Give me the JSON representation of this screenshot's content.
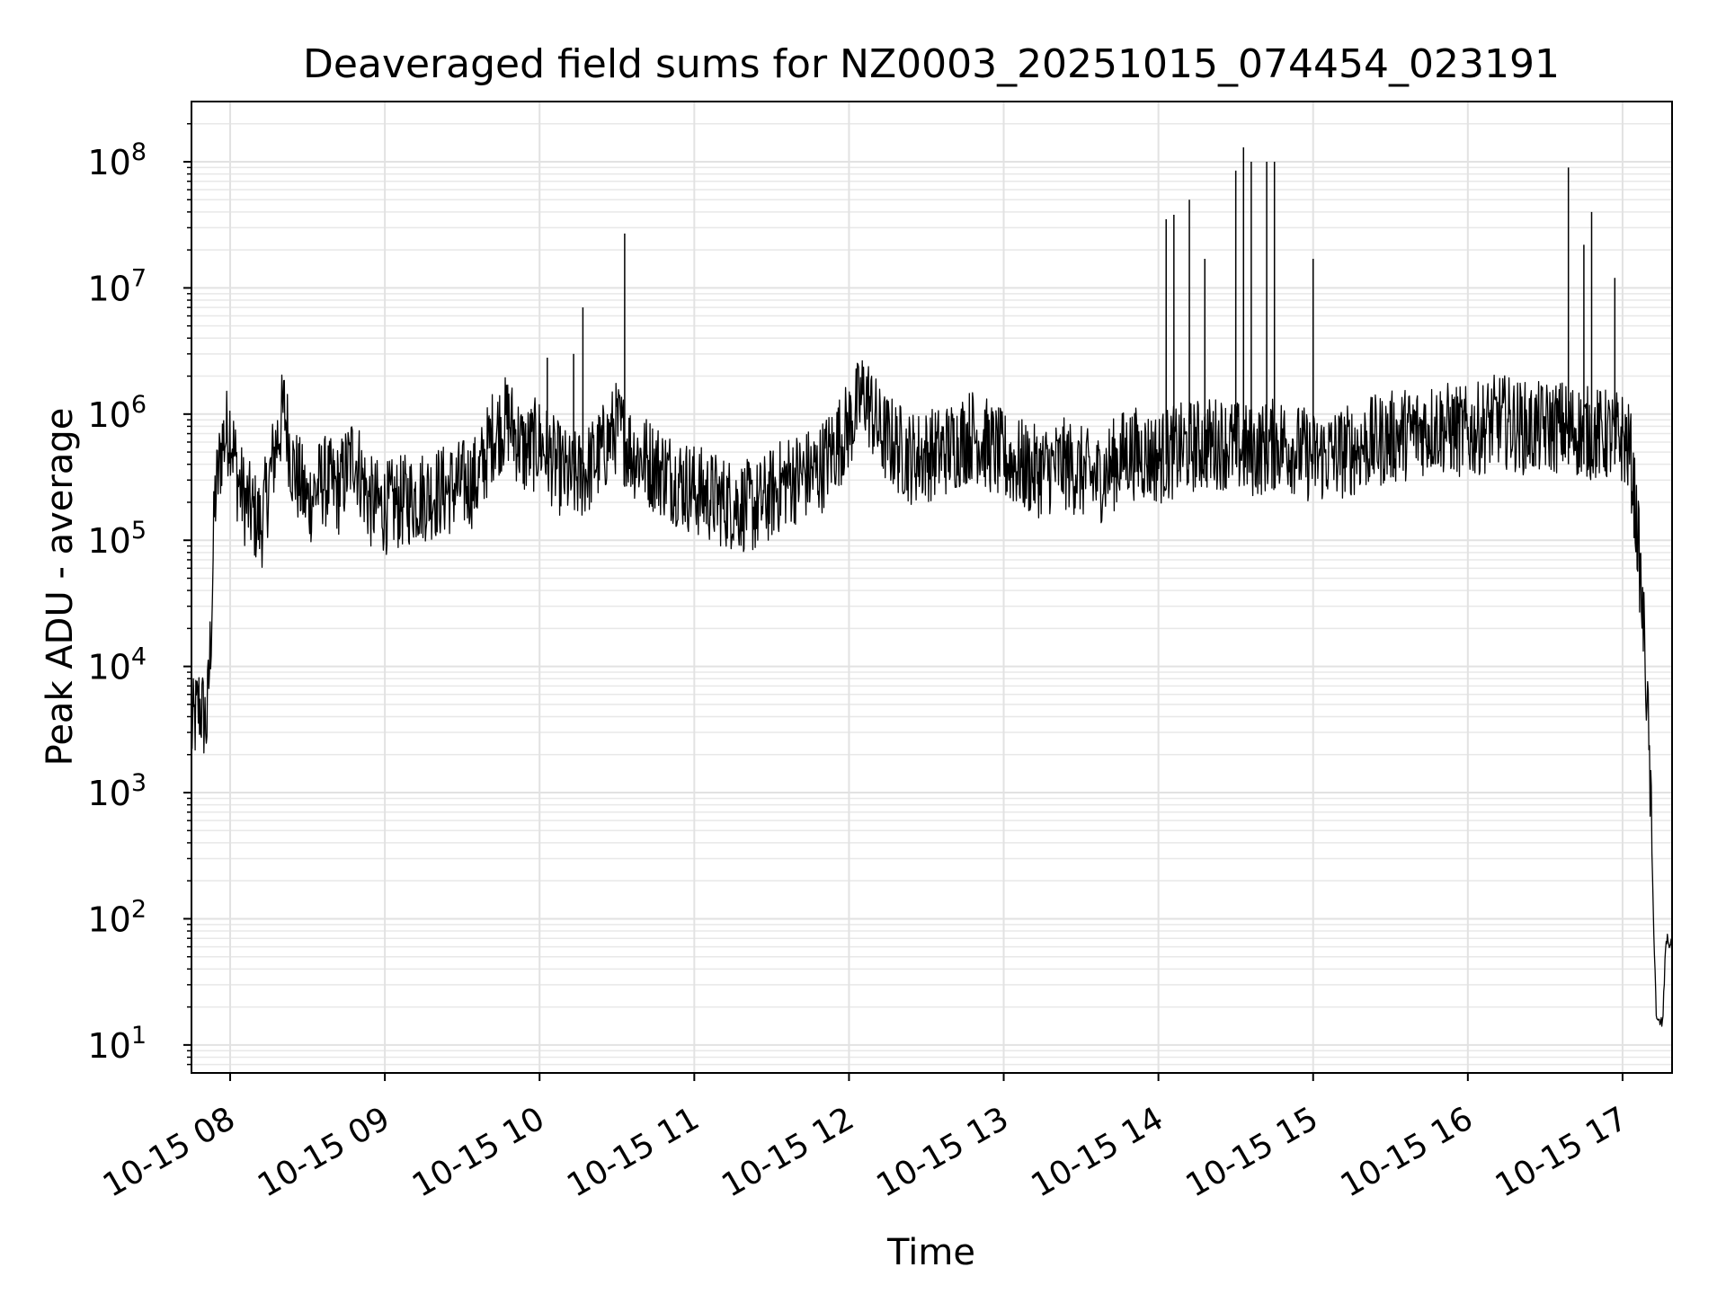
{
  "chart_data": {
    "type": "line",
    "title": "Deaveraged field sums for NZ0003_20251015_074454_023191",
    "xlabel": "Time",
    "ylabel": "Peak ADU - average",
    "yscale": "log",
    "grid": true,
    "xlim_hours": [
      7.75,
      17.32
    ],
    "ylim": [
      6,
      300000000
    ],
    "x_ticks": [
      {
        "hour": 8,
        "label": "10-15 08"
      },
      {
        "hour": 9,
        "label": "10-15 09"
      },
      {
        "hour": 10,
        "label": "10-15 10"
      },
      {
        "hour": 11,
        "label": "10-15 11"
      },
      {
        "hour": 12,
        "label": "10-15 12"
      },
      {
        "hour": 13,
        "label": "10-15 13"
      },
      {
        "hour": 14,
        "label": "10-15 14"
      },
      {
        "hour": 15,
        "label": "10-15 15"
      },
      {
        "hour": 16,
        "label": "10-15 16"
      },
      {
        "hour": 17,
        "label": "10-15 17"
      }
    ],
    "y_ticks": [
      {
        "exp": 1,
        "base": "10",
        "sup": "1"
      },
      {
        "exp": 2,
        "base": "10",
        "sup": "2"
      },
      {
        "exp": 3,
        "base": "10",
        "sup": "3"
      },
      {
        "exp": 4,
        "base": "10",
        "sup": "4"
      },
      {
        "exp": 5,
        "base": "10",
        "sup": "5"
      },
      {
        "exp": 6,
        "base": "10",
        "sup": "6"
      },
      {
        "exp": 7,
        "base": "10",
        "sup": "7"
      },
      {
        "exp": 8,
        "base": "10",
        "sup": "8"
      }
    ],
    "series": [
      {
        "name": "Peak ADU - average",
        "color": "#000000",
        "points": [
          [
            7.75,
            3000
          ],
          [
            7.8,
            5000
          ],
          [
            7.85,
            3500
          ],
          [
            7.88,
            25000
          ],
          [
            7.9,
            200000
          ],
          [
            7.95,
            600000
          ],
          [
            8.0,
            800000
          ],
          [
            8.05,
            300000
          ],
          [
            8.1,
            200000
          ],
          [
            8.2,
            130000
          ],
          [
            8.3,
            600000
          ],
          [
            8.35,
            1100000
          ],
          [
            8.4,
            400000
          ],
          [
            8.5,
            200000
          ],
          [
            8.6,
            300000
          ],
          [
            8.7,
            250000
          ],
          [
            8.8,
            500000
          ],
          [
            8.9,
            200000
          ],
          [
            9.0,
            180000
          ],
          [
            9.2,
            220000
          ],
          [
            9.4,
            250000
          ],
          [
            9.6,
            300000
          ],
          [
            9.7,
            700000
          ],
          [
            9.8,
            900000
          ],
          [
            9.9,
            500000
          ],
          [
            10.0,
            600000
          ],
          [
            10.1,
            400000
          ],
          [
            10.2,
            300000
          ],
          [
            10.3,
            350000
          ],
          [
            10.4,
            500000
          ],
          [
            10.5,
            800000
          ],
          [
            10.6,
            500000
          ],
          [
            10.8,
            350000
          ],
          [
            11.0,
            250000
          ],
          [
            11.2,
            200000
          ],
          [
            11.4,
            180000
          ],
          [
            11.6,
            300000
          ],
          [
            11.8,
            350000
          ],
          [
            12.0,
            800000
          ],
          [
            12.1,
            1500000
          ],
          [
            12.2,
            700000
          ],
          [
            12.4,
            450000
          ],
          [
            12.6,
            500000
          ],
          [
            12.8,
            700000
          ],
          [
            13.0,
            450000
          ],
          [
            13.2,
            350000
          ],
          [
            13.4,
            400000
          ],
          [
            13.6,
            300000
          ],
          [
            13.8,
            500000
          ],
          [
            14.0,
            450000
          ],
          [
            14.2,
            550000
          ],
          [
            14.4,
            600000
          ],
          [
            14.6,
            500000
          ],
          [
            14.8,
            600000
          ],
          [
            15.0,
            450000
          ],
          [
            15.2,
            500000
          ],
          [
            15.4,
            600000
          ],
          [
            15.6,
            700000
          ],
          [
            15.8,
            800000
          ],
          [
            16.0,
            700000
          ],
          [
            16.2,
            900000
          ],
          [
            16.4,
            750000
          ],
          [
            16.6,
            800000
          ],
          [
            16.8,
            700000
          ],
          [
            17.0,
            650000
          ],
          [
            17.05,
            500000
          ],
          [
            17.1,
            100000
          ],
          [
            17.15,
            10000
          ],
          [
            17.18,
            1000
          ],
          [
            17.2,
            100
          ],
          [
            17.22,
            15
          ],
          [
            17.26,
            15
          ],
          [
            17.28,
            70
          ],
          [
            17.32,
            60
          ]
        ],
        "spikes": [
          [
            10.05,
            2800000
          ],
          [
            10.22,
            3000000
          ],
          [
            10.28,
            7000000
          ],
          [
            10.55,
            27000000
          ],
          [
            14.05,
            35000000
          ],
          [
            14.1,
            38000000
          ],
          [
            14.2,
            50000000
          ],
          [
            14.3,
            17000000
          ],
          [
            14.5,
            85000000
          ],
          [
            14.55,
            130000000
          ],
          [
            14.6,
            100000000
          ],
          [
            14.7,
            100000000
          ],
          [
            14.75,
            100000000
          ],
          [
            15.0,
            17000000
          ],
          [
            16.65,
            90000000
          ],
          [
            16.75,
            22000000
          ],
          [
            16.8,
            40000000
          ],
          [
            16.95,
            12000000
          ]
        ]
      }
    ]
  }
}
